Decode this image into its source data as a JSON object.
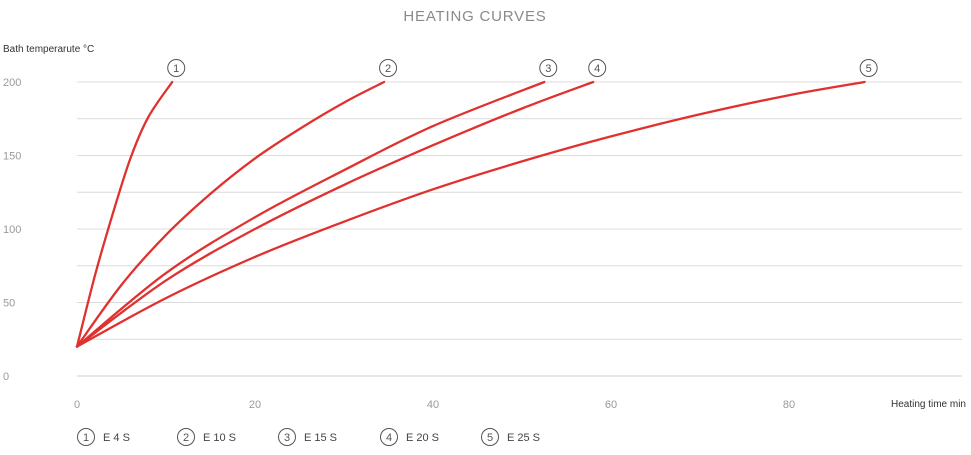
{
  "chart_data": {
    "type": "line",
    "title": "HEATING CURVES",
    "ylabel": "Bath temperarute °C",
    "xlabel": "Heating time min",
    "xlim": [
      0,
      100
    ],
    "ylim": [
      0,
      200
    ],
    "x_ticks": [
      0,
      20,
      40,
      60,
      80
    ],
    "y_ticks": [
      0,
      50,
      100,
      150,
      200
    ],
    "y_grid": [
      25,
      50,
      75,
      100,
      125,
      150,
      175,
      200
    ],
    "grid": true,
    "legend_position": "bottom-left",
    "color": "#e0312f",
    "series": [
      {
        "marker": "1",
        "name": "E 4 S",
        "x": [
          0,
          2,
          4,
          6,
          8,
          10.7
        ],
        "y": [
          20,
          68,
          110,
          148,
          176,
          200
        ]
      },
      {
        "marker": "2",
        "name": "E 10 S",
        "x": [
          0,
          5,
          10,
          15,
          20,
          25,
          30,
          34.5
        ],
        "y": [
          20,
          62,
          96,
          124,
          148,
          168,
          186,
          200
        ]
      },
      {
        "marker": "3",
        "name": "E 15 S",
        "x": [
          0,
          10,
          20,
          30,
          40,
          52.5
        ],
        "y": [
          20,
          70,
          108,
          140,
          170,
          200
        ]
      },
      {
        "marker": "4",
        "name": "E 20 S",
        "x": [
          0,
          10,
          20,
          30,
          40,
          50,
          58
        ],
        "y": [
          20,
          65,
          100,
          130,
          157,
          182,
          200
        ]
      },
      {
        "marker": "5",
        "name": "E 25 S",
        "x": [
          0,
          10,
          20,
          30,
          40,
          50,
          60,
          70,
          80,
          88.5
        ],
        "y": [
          20,
          53,
          81,
          105,
          127,
          146,
          163,
          178,
          191,
          200
        ]
      }
    ]
  }
}
